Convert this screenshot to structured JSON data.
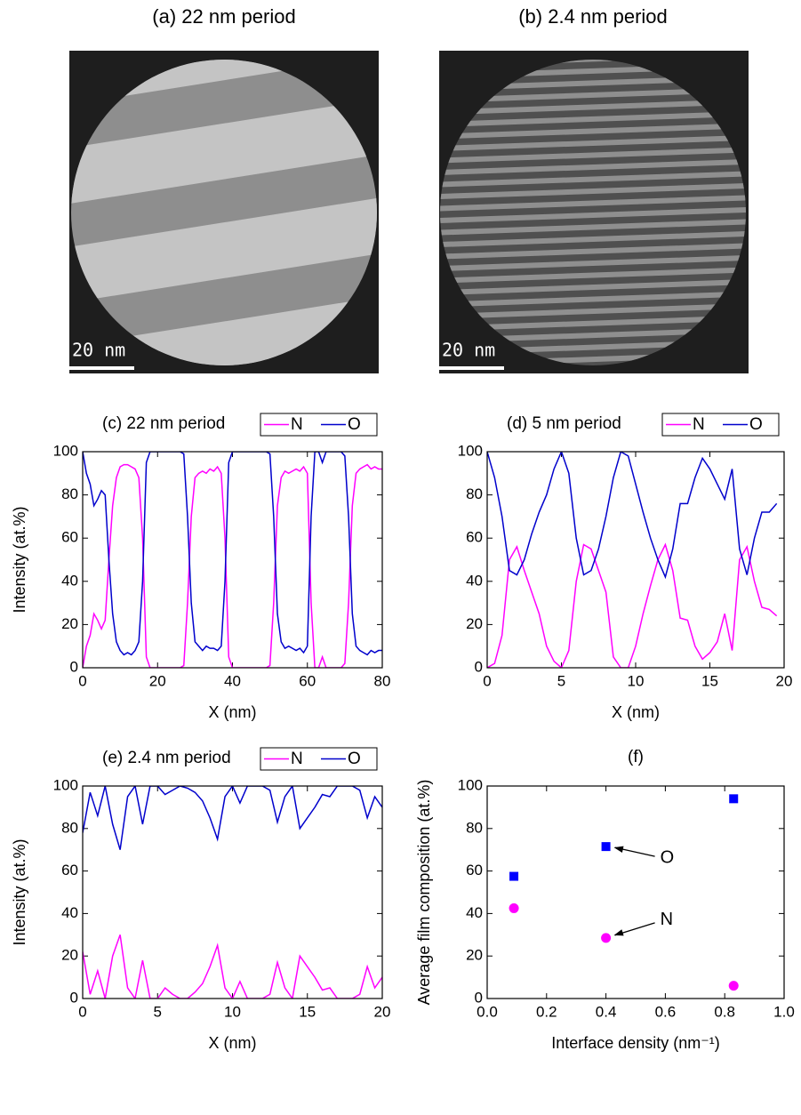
{
  "images": [
    {
      "title": "(a) 22 nm period",
      "scale_bar": "20 nm",
      "stripes": "wide"
    },
    {
      "title": "(b) 2.4 nm period",
      "scale_bar": "20 nm",
      "stripes": "fine"
    }
  ],
  "chart_data": [
    {
      "type": "line",
      "title": "(c) 22 nm period",
      "xlabel": "X (nm)",
      "ylabel": "Intensity (at.%)",
      "legend": "above-right",
      "x": [
        0,
        1,
        2,
        3,
        4,
        5,
        6,
        7,
        8,
        9,
        10,
        11,
        12,
        13,
        14,
        15,
        16,
        17,
        18,
        19,
        20,
        21,
        22,
        23,
        24,
        25,
        26,
        27,
        28,
        29,
        30,
        31,
        32,
        33,
        34,
        35,
        36,
        37,
        38,
        39,
        40,
        41,
        42,
        43,
        44,
        45,
        46,
        47,
        48,
        49,
        50,
        51,
        52,
        53,
        54,
        55,
        56,
        57,
        58,
        59,
        60,
        61,
        62,
        63,
        64,
        65,
        66,
        67,
        68,
        69,
        70,
        71,
        72,
        73,
        74,
        75,
        76,
        77,
        78,
        79,
        80
      ],
      "series": [
        {
          "name": "N",
          "color": "#ff00ff",
          "values": [
            0,
            10,
            15,
            25,
            22,
            18,
            22,
            50,
            75,
            88,
            93,
            94,
            94,
            93,
            92,
            88,
            60,
            5,
            0,
            0,
            0,
            0,
            0,
            0,
            0,
            0,
            0,
            1,
            30,
            70,
            88,
            90,
            91,
            90,
            92,
            91,
            93,
            90,
            60,
            5,
            0,
            0,
            0,
            0,
            0,
            0,
            0,
            0,
            0,
            0,
            1,
            30,
            75,
            88,
            91,
            90,
            91,
            92,
            91,
            93,
            90,
            30,
            0,
            0,
            5,
            0,
            0,
            0,
            0,
            0,
            2,
            30,
            75,
            90,
            92,
            93,
            94,
            92,
            93,
            92,
            92
          ]
        },
        {
          "name": "O",
          "color": "#0000cc",
          "values": [
            100,
            90,
            85,
            75,
            78,
            82,
            80,
            50,
            25,
            12,
            8,
            6,
            7,
            6,
            8,
            12,
            40,
            95,
            100,
            100,
            100,
            100,
            100,
            100,
            100,
            100,
            100,
            99,
            70,
            30,
            12,
            10,
            8,
            10,
            9,
            9,
            8,
            10,
            40,
            95,
            100,
            100,
            100,
            100,
            100,
            100,
            100,
            100,
            100,
            100,
            99,
            70,
            25,
            12,
            9,
            10,
            9,
            8,
            9,
            7,
            10,
            70,
            100,
            100,
            95,
            100,
            100,
            100,
            100,
            100,
            98,
            70,
            25,
            10,
            8,
            7,
            6,
            8,
            7,
            8,
            8
          ]
        }
      ],
      "xlim": [
        0,
        80
      ],
      "ylim": [
        0,
        100
      ],
      "xticks": [
        0,
        20,
        40,
        60,
        80
      ],
      "yticks": [
        0,
        20,
        40,
        60,
        80,
        100
      ]
    },
    {
      "type": "line",
      "title": "(d) 5 nm period",
      "xlabel": "X (nm)",
      "ylabel": "",
      "legend": "above-right",
      "x": [
        0,
        0.5,
        1,
        1.5,
        2,
        2.5,
        3,
        3.5,
        4,
        4.5,
        5,
        5.5,
        6,
        6.5,
        7,
        7.5,
        8,
        8.5,
        9,
        9.5,
        10,
        10.5,
        11,
        11.5,
        12,
        12.5,
        13,
        13.5,
        14,
        14.5,
        15,
        15.5,
        16,
        16.5,
        17,
        17.5,
        18,
        18.5,
        19,
        19.5
      ],
      "series": [
        {
          "name": "N",
          "color": "#ff00ff",
          "values": [
            0,
            2,
            15,
            50,
            56,
            45,
            35,
            25,
            10,
            3,
            0,
            8,
            40,
            57,
            55,
            45,
            35,
            5,
            0,
            0,
            10,
            25,
            38,
            50,
            57,
            45,
            23,
            22,
            10,
            4,
            7,
            12,
            25,
            8,
            50,
            56,
            40,
            28,
            27,
            24
          ]
        },
        {
          "name": "O",
          "color": "#0000cc",
          "values": [
            100,
            88,
            70,
            45,
            43,
            50,
            62,
            72,
            80,
            92,
            100,
            90,
            60,
            43,
            45,
            55,
            70,
            88,
            100,
            98,
            85,
            72,
            60,
            50,
            42,
            55,
            76,
            76,
            88,
            97,
            92,
            85,
            78,
            92,
            55,
            43,
            60,
            72,
            72,
            76
          ]
        }
      ],
      "xlim": [
        0,
        20
      ],
      "ylim": [
        0,
        100
      ],
      "xticks": [
        0,
        5,
        10,
        15,
        20
      ],
      "yticks": [
        0,
        20,
        40,
        60,
        80,
        100
      ]
    },
    {
      "type": "line",
      "title": "(e) 2.4 nm period",
      "xlabel": "X (nm)",
      "ylabel": "Intensity (at.%)",
      "legend": "above-right",
      "x": [
        0,
        0.5,
        1,
        1.5,
        2,
        2.5,
        3,
        3.5,
        4,
        4.5,
        5,
        5.5,
        6,
        6.5,
        7,
        7.5,
        8,
        8.5,
        9,
        9.5,
        10,
        10.5,
        11,
        11.5,
        12,
        12.5,
        13,
        13.5,
        14,
        14.5,
        15,
        15.5,
        16,
        16.5,
        17,
        17.5,
        18,
        18.5,
        19,
        19.5,
        20
      ],
      "series": [
        {
          "name": "N",
          "color": "#ff00ff",
          "values": [
            22,
            2,
            13,
            0,
            20,
            30,
            5,
            0,
            18,
            0,
            0,
            5,
            2,
            0,
            0,
            3,
            7,
            15,
            25,
            5,
            0,
            8,
            0,
            0,
            0,
            2,
            17,
            5,
            0,
            20,
            15,
            10,
            4,
            5,
            0,
            0,
            0,
            2,
            15,
            5,
            10
          ]
        },
        {
          "name": "O",
          "color": "#0000cc",
          "values": [
            78,
            97,
            86,
            100,
            82,
            70,
            95,
            100,
            82,
            100,
            100,
            96,
            98,
            100,
            99,
            97,
            93,
            85,
            75,
            95,
            100,
            92,
            100,
            100,
            100,
            98,
            83,
            95,
            100,
            80,
            85,
            90,
            96,
            95,
            100,
            100,
            100,
            98,
            85,
            95,
            90
          ]
        }
      ],
      "xlim": [
        0,
        20
      ],
      "ylim": [
        0,
        100
      ],
      "xticks": [
        0,
        5,
        10,
        15,
        20
      ],
      "yticks": [
        0,
        20,
        40,
        60,
        80,
        100
      ]
    },
    {
      "type": "scatter",
      "title": "(f)",
      "xlabel": "Interface density (nm⁻¹)",
      "ylabel": "Average film composition (at.%)",
      "x": [
        0.09,
        0.4,
        0.83
      ],
      "series": [
        {
          "name": "O",
          "color": "#0000ff",
          "marker": "square",
          "values": [
            57.5,
            71.5,
            94
          ]
        },
        {
          "name": "N",
          "color": "#ff00ff",
          "marker": "circle",
          "values": [
            42.5,
            28.5,
            6
          ]
        }
      ],
      "annotations": [
        "O",
        "N"
      ],
      "xlim": [
        0,
        1
      ],
      "ylim": [
        0,
        100
      ],
      "xticks": [
        {
          "value": 0,
          "label": "0.0"
        },
        0.2,
        0.4,
        0.6,
        0.8,
        {
          "value": 1,
          "label": "1.0"
        }
      ],
      "yticks": [
        0,
        20,
        40,
        60,
        80,
        100
      ]
    }
  ]
}
